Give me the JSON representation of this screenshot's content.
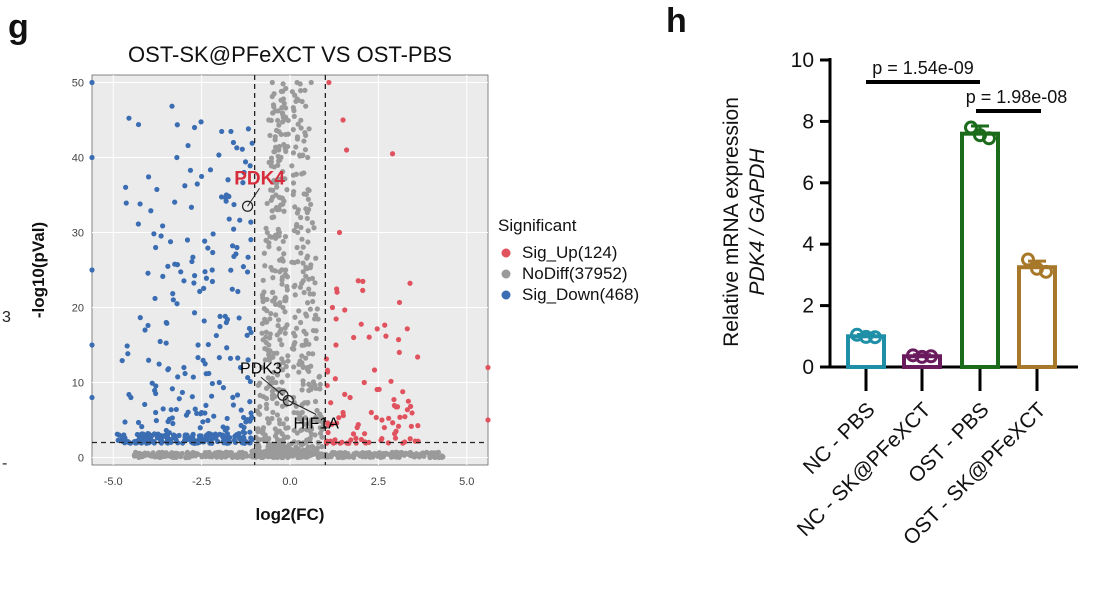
{
  "chart_data": [
    {
      "panel_letter": "g",
      "type": "scatter",
      "title": "OST-SK@PFeXCT VS OST-PBS",
      "xlabel": "log2(FC)",
      "ylabel": "-log10(pVal)",
      "xlim": [
        -5.6,
        5.6
      ],
      "ylim": [
        -1,
        51
      ],
      "xticks": [
        -5.0,
        -2.5,
        0.0,
        2.5,
        5.0
      ],
      "xtick_labels": [
        "-5.0",
        "-2.5",
        "0.0",
        "2.5",
        "5.0"
      ],
      "yticks": [
        0,
        10,
        20,
        30,
        40,
        50
      ],
      "ytick_labels": [
        "0",
        "10",
        "20",
        "30",
        "40",
        "50"
      ],
      "thresholds": {
        "log2fc": [
          -1,
          1
        ],
        "neg_log10_p": 2
      },
      "legend": {
        "title": "Significant",
        "position": "right",
        "entries": [
          {
            "label": "Sig_Up(124)",
            "color": "#e0535e"
          },
          {
            "label": "NoDiff(37952)",
            "color": "#9a9a9a"
          },
          {
            "label": "Sig_Down(468)",
            "color": "#3b6db3"
          }
        ]
      },
      "highlighted_genes": [
        {
          "name": "PDK4",
          "x": -1.2,
          "y": 33.5,
          "color": "#d62d3c"
        },
        {
          "name": "PDK3",
          "x": -0.2,
          "y": 8.3,
          "color": "#000000"
        },
        {
          "name": "HIF1A",
          "x": -0.05,
          "y": 7.6,
          "color": "#000000"
        }
      ],
      "representative_points": {
        "Sig_Up": [
          [
            1.1,
            50
          ],
          [
            1.5,
            45
          ],
          [
            1.6,
            41
          ],
          [
            2.9,
            40.5
          ],
          [
            1.4,
            30
          ],
          [
            1.2,
            20
          ],
          [
            1.8,
            16
          ],
          [
            1.3,
            15
          ],
          [
            2.1,
            10
          ],
          [
            1.7,
            8
          ],
          [
            2.3,
            6
          ],
          [
            2.6,
            5
          ],
          [
            3.0,
            3.5
          ],
          [
            3.4,
            2.5
          ],
          [
            1.5,
            6
          ],
          [
            1.9,
            4
          ],
          [
            5.6,
            12
          ],
          [
            5.6,
            5
          ]
        ],
        "Sig_Down": [
          [
            -5.6,
            50
          ],
          [
            -5.6,
            40
          ],
          [
            -5.6,
            25
          ],
          [
            -5.6,
            15
          ],
          [
            -5.6,
            8
          ],
          [
            -2.7,
            44
          ],
          [
            -1.6,
            42
          ],
          [
            -1.3,
            38
          ],
          [
            -1.8,
            35
          ],
          [
            -3.2,
            40
          ],
          [
            -3.8,
            28
          ],
          [
            -2.9,
            29
          ],
          [
            -2.2,
            25
          ],
          [
            -1.5,
            28
          ],
          [
            -3.5,
            18
          ],
          [
            -4.1,
            17
          ],
          [
            -2.6,
            15
          ],
          [
            -1.8,
            18
          ],
          [
            -3.0,
            12
          ],
          [
            -2.0,
            10
          ],
          [
            -1.4,
            12
          ],
          [
            -4.5,
            8
          ],
          [
            -3.8,
            6
          ],
          [
            -2.5,
            6
          ],
          [
            -1.6,
            7
          ],
          [
            -4.7,
            3
          ],
          [
            -3.5,
            3
          ],
          [
            -2.2,
            3
          ],
          [
            -1.3,
            4
          ],
          [
            -1.1,
            2.5
          ]
        ],
        "NoDiff": [
          [
            -0.5,
            50
          ],
          [
            0.2,
            50
          ],
          [
            0.6,
            50
          ],
          [
            -0.6,
            45
          ],
          [
            0.5,
            40
          ],
          [
            -0.4,
            35
          ],
          [
            0.3,
            32
          ],
          [
            -0.3,
            30
          ],
          [
            0.2,
            28
          ],
          [
            -0.5,
            25
          ],
          [
            0.4,
            22
          ],
          [
            -0.2,
            20
          ],
          [
            0.3,
            18
          ],
          [
            -0.6,
            15
          ],
          [
            0.5,
            12
          ],
          [
            -0.4,
            10
          ],
          [
            0.1,
            8
          ],
          [
            -0.3,
            5
          ],
          [
            0.6,
            4
          ],
          [
            -0.7,
            3
          ],
          [
            0.8,
            2
          ],
          [
            -0.9,
            1.5
          ],
          [
            -2.0,
            0.3
          ],
          [
            -3.5,
            0.2
          ],
          [
            -4.4,
            0.2
          ],
          [
            2.0,
            0.3
          ],
          [
            3.5,
            0.2
          ],
          [
            4.3,
            0.2
          ],
          [
            0,
            0.2
          ]
        ]
      }
    },
    {
      "panel_letter": "h",
      "type": "bar",
      "ylabel_line1": "Relative mRNA expression",
      "ylabel_line2": "PDK4 / GAPDH",
      "ylim": [
        0,
        10
      ],
      "yticks": [
        0,
        2,
        4,
        6,
        8,
        10
      ],
      "ytick_labels": [
        "0",
        "2",
        "4",
        "6",
        "8",
        "10"
      ],
      "categories": [
        "NC - PBS",
        "NC - SK@PFeXCT",
        "OST - PBS",
        "OST - SK@PFeXCT"
      ],
      "values": [
        1.0,
        0.35,
        7.6,
        3.25
      ],
      "errors": [
        0.06,
        0.05,
        0.25,
        0.2
      ],
      "colors": [
        "#1e8fa6",
        "#6a1b5e",
        "#1a6b1a",
        "#a8782a"
      ],
      "replicates": [
        [
          1.05,
          0.98,
          0.97
        ],
        [
          0.38,
          0.33,
          0.35
        ],
        [
          7.8,
          7.55,
          7.45
        ],
        [
          3.5,
          3.2,
          3.1
        ]
      ],
      "significance": [
        {
          "from": 0,
          "to": 2,
          "label": "p = 1.54e-09"
        },
        {
          "from": 2,
          "to": 3,
          "label": "p = 1.98e-08"
        }
      ]
    }
  ],
  "edge_fragments": {
    "left_digit": "3",
    "left_mark": "-"
  }
}
